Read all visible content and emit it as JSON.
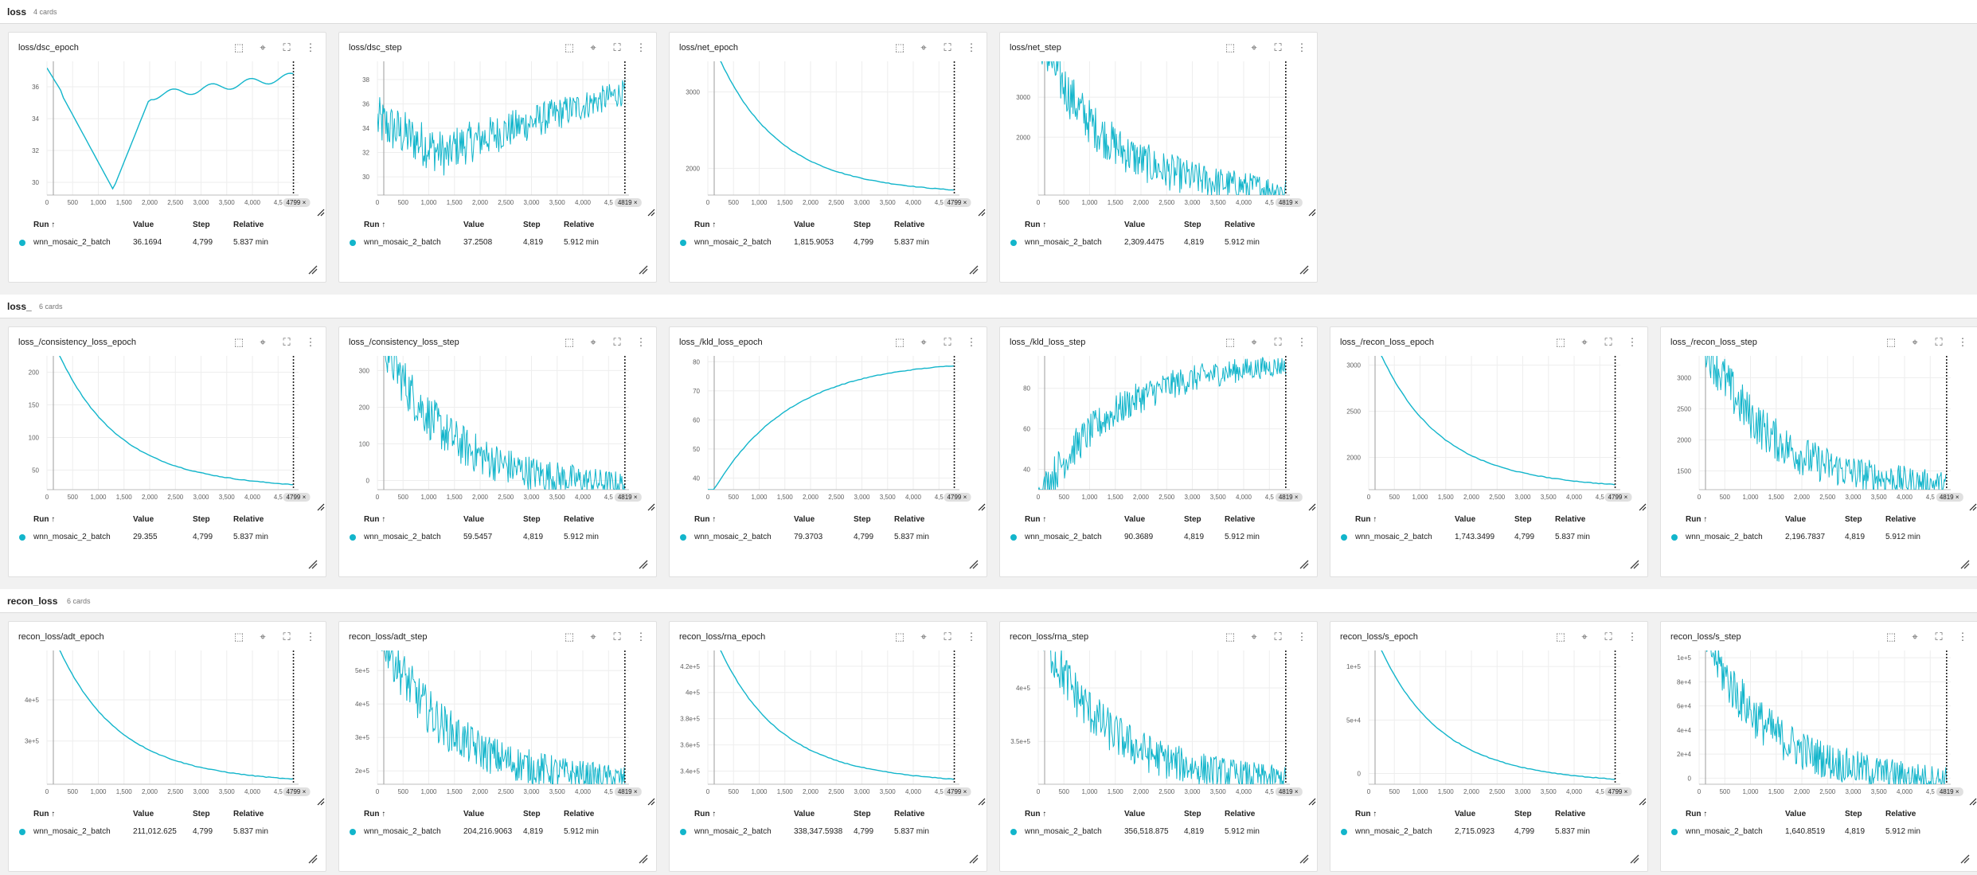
{
  "accent_color": "#12b5cb",
  "table_header": {
    "run": "Run ↑",
    "value": "Value",
    "step": "Step",
    "relative": "Relative"
  },
  "x_ticks": [
    "0",
    "500",
    "1,000",
    "1,500",
    "2,000",
    "2,500",
    "3,000",
    "3,500",
    "4,000",
    "4,5"
  ],
  "icons": {
    "fit": "fit-domain-icon",
    "pin": "pin-icon",
    "fullscreen": "fullscreen-icon",
    "more": "more-vert-icon",
    "resize": "resize-handle-icon"
  },
  "sections": [
    {
      "title": "loss",
      "count": "4 cards",
      "cards": [
        {
          "title": "loss/dsc_epoch",
          "run": "wnn_mosaic_2_batch",
          "value": "36.1694",
          "step": "4,799",
          "relative": "5.837 min",
          "xlast": "4799",
          "chart_data": {
            "type": "line",
            "shape": "dsc_epoch",
            "y_ticks": [
              "36",
              "34",
              "32",
              "30"
            ],
            "y_range": [
              29.2,
              37.6
            ],
            "x_range": [
              0,
              4799
            ],
            "noisy": false
          }
        },
        {
          "title": "loss/dsc_step",
          "run": "wnn_mosaic_2_batch",
          "value": "37.2508",
          "step": "4,819",
          "relative": "5.912 min",
          "xlast": "4819",
          "chart_data": {
            "type": "line",
            "shape": "dsc_step",
            "y_ticks": [
              "38",
              "36",
              "34",
              "32",
              "30"
            ],
            "y_range": [
              28.5,
              39.5
            ],
            "x_range": [
              0,
              4819
            ],
            "noisy": true
          }
        },
        {
          "title": "loss/net_epoch",
          "run": "wnn_mosaic_2_batch",
          "value": "1,815.9053",
          "step": "4,799",
          "relative": "5.837 min",
          "xlast": "4799",
          "chart_data": {
            "type": "line",
            "shape": "decay",
            "y_ticks": [
              "3000",
              "2000"
            ],
            "y_range": [
              1650,
              3400
            ],
            "x_range": [
              0,
              4799
            ],
            "noisy": false
          }
        },
        {
          "title": "loss/net_step",
          "run": "wnn_mosaic_2_batch",
          "value": "2,309.4475",
          "step": "4,819",
          "relative": "5.912 min",
          "xlast": "4819",
          "chart_data": {
            "type": "line",
            "shape": "decay",
            "y_ticks": [
              "3000",
              "2000"
            ],
            "y_range": [
              550,
              3900
            ],
            "x_range": [
              0,
              4819
            ],
            "noisy": true
          }
        }
      ]
    },
    {
      "title": "loss_",
      "count": "6 cards",
      "cards": [
        {
          "title": "loss_/consistency_loss_epoch",
          "run": "wnn_mosaic_2_batch",
          "value": "29.355",
          "step": "4,799",
          "relative": "5.837 min",
          "xlast": "4799",
          "chart_data": {
            "type": "line",
            "shape": "decay",
            "y_ticks": [
              "200",
              "150",
              "100",
              "50"
            ],
            "y_range": [
              20,
              225
            ],
            "x_range": [
              0,
              4799
            ],
            "noisy": false
          }
        },
        {
          "title": "loss_/consistency_loss_step",
          "run": "wnn_mosaic_2_batch",
          "value": "59.5457",
          "step": "4,819",
          "relative": "5.912 min",
          "xlast": "4819",
          "chart_data": {
            "type": "line",
            "shape": "decay",
            "y_ticks": [
              "300",
              "200",
              "100",
              "0"
            ],
            "y_range": [
              -25,
              340
            ],
            "x_range": [
              0,
              4819
            ],
            "noisy": true
          }
        },
        {
          "title": "loss_/kld_loss_epoch",
          "run": "wnn_mosaic_2_batch",
          "value": "79.3703",
          "step": "4,799",
          "relative": "5.837 min",
          "xlast": "4799",
          "chart_data": {
            "type": "line",
            "shape": "growth",
            "y_ticks": [
              "80",
              "70",
              "60",
              "50",
              "40"
            ],
            "y_range": [
              36,
              82
            ],
            "x_range": [
              0,
              4799
            ],
            "noisy": false
          }
        },
        {
          "title": "loss_/kld_loss_step",
          "run": "wnn_mosaic_2_batch",
          "value": "90.3689",
          "step": "4,819",
          "relative": "5.912 min",
          "xlast": "4819",
          "chart_data": {
            "type": "line",
            "shape": "growth",
            "y_ticks": [
              "80",
              "60",
              "40"
            ],
            "y_range": [
              30,
              96
            ],
            "x_range": [
              0,
              4819
            ],
            "noisy": true
          }
        },
        {
          "title": "loss_/recon_loss_epoch",
          "run": "wnn_mosaic_2_batch",
          "value": "1,743.3499",
          "step": "4,799",
          "relative": "5.837 min",
          "xlast": "4799",
          "chart_data": {
            "type": "line",
            "shape": "decay",
            "y_ticks": [
              "3000",
              "2500",
              "2000"
            ],
            "y_range": [
              1650,
              3100
            ],
            "x_range": [
              0,
              4799
            ],
            "noisy": false
          }
        },
        {
          "title": "loss_/recon_loss_step",
          "run": "wnn_mosaic_2_batch",
          "value": "2,196.7837",
          "step": "4,819",
          "relative": "5.912 min",
          "xlast": "4819",
          "chart_data": {
            "type": "line",
            "shape": "decay",
            "y_ticks": [
              "3000",
              "2500",
              "2000",
              "1500"
            ],
            "y_range": [
              1200,
              3350
            ],
            "x_range": [
              0,
              4819
            ],
            "noisy": true
          }
        }
      ]
    },
    {
      "title": "recon_loss",
      "count": "6 cards",
      "cards": [
        {
          "title": "recon_loss/adt_epoch",
          "run": "wnn_mosaic_2_batch",
          "value": "211,012.625",
          "step": "4,799",
          "relative": "5.837 min",
          "xlast": "4799",
          "chart_data": {
            "type": "line",
            "shape": "decay",
            "y_ticks": [
              "4e+5",
              "3e+5"
            ],
            "y_range": [
              195000,
              520000
            ],
            "x_range": [
              0,
              4799
            ],
            "noisy": false
          }
        },
        {
          "title": "recon_loss/adt_step",
          "run": "wnn_mosaic_2_batch",
          "value": "204,216.9063",
          "step": "4,819",
          "relative": "5.912 min",
          "xlast": "4819",
          "chart_data": {
            "type": "line",
            "shape": "decay",
            "y_ticks": [
              "5e+5",
              "4e+5",
              "3e+5",
              "2e+5"
            ],
            "y_range": [
              160000,
              560000
            ],
            "x_range": [
              0,
              4819
            ],
            "noisy": true
          }
        },
        {
          "title": "recon_loss/rna_epoch",
          "run": "wnn_mosaic_2_batch",
          "value": "338,347.5938",
          "step": "4,799",
          "relative": "5.837 min",
          "xlast": "4799",
          "chart_data": {
            "type": "line",
            "shape": "decay",
            "y_ticks": [
              "4.2e+5",
              "4e+5",
              "3.8e+5",
              "3.6e+5",
              "3.4e+5"
            ],
            "y_range": [
              330000,
              432000
            ],
            "x_range": [
              0,
              4799
            ],
            "noisy": false
          }
        },
        {
          "title": "recon_loss/rna_step",
          "run": "wnn_mosaic_2_batch",
          "value": "356,518.875",
          "step": "4,819",
          "relative": "5.912 min",
          "xlast": "4819",
          "chart_data": {
            "type": "line",
            "shape": "decay",
            "y_ticks": [
              "4e+5",
              "3.5e+5"
            ],
            "y_range": [
              310000,
              435000
            ],
            "x_range": [
              0,
              4819
            ],
            "noisy": true
          }
        },
        {
          "title": "recon_loss/s_epoch",
          "run": "wnn_mosaic_2_batch",
          "value": "2,715.0923",
          "step": "4,799",
          "relative": "5.837 min",
          "xlast": "4799",
          "chart_data": {
            "type": "line",
            "shape": "decay",
            "y_ticks": [
              "1e+5",
              "5e+4",
              "0"
            ],
            "y_range": [
              -10000,
              115000
            ],
            "x_range": [
              0,
              4799
            ],
            "noisy": false
          }
        },
        {
          "title": "recon_loss/s_step",
          "run": "wnn_mosaic_2_batch",
          "value": "1,640.8519",
          "step": "4,819",
          "relative": "5.912 min",
          "xlast": "4819",
          "chart_data": {
            "type": "line",
            "shape": "decay",
            "y_ticks": [
              "1e+5",
              "8e+4",
              "6e+4",
              "4e+4",
              "2e+4",
              "0"
            ],
            "y_range": [
              -5000,
              106000
            ],
            "x_range": [
              0,
              4819
            ],
            "noisy": true
          }
        }
      ]
    }
  ]
}
